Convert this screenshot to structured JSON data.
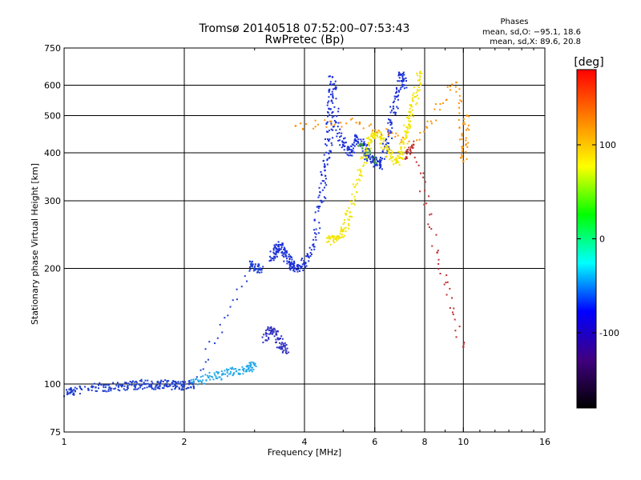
{
  "chart_data": {
    "type": "scatter",
    "title": "Tromsø 20140518 07:52:00–07:53:43",
    "subtitle": "RwPretec (Bp)",
    "xlabel": "Frequency [MHz]",
    "ylabel": "Stationary phase Virtual Height [km]",
    "xscale": "log",
    "yscale": "log",
    "xlim": [
      1,
      16
    ],
    "ylim": [
      75,
      750
    ],
    "grid": true,
    "x_ticks": [
      1,
      2,
      4,
      6,
      8,
      10,
      16
    ],
    "x_gridlines": [
      2,
      4,
      6,
      8,
      10
    ],
    "y_ticks": [
      75,
      100,
      200,
      300,
      400,
      500,
      600,
      750
    ],
    "y_gridlines": [
      100,
      200,
      300,
      400,
      500,
      600
    ],
    "legend": {
      "title": "Phases",
      "lines": [
        "mean, sd,O: −95.1, 18.6",
        "mean, sd,X:  89.6, 20.8"
      ],
      "position": "top-right"
    },
    "colorbar": {
      "label": "[deg]",
      "min": -180,
      "max": 180,
      "ticks": [
        100,
        0,
        -100
      ],
      "colors": [
        "#ff0000",
        "#ff8000",
        "#ffff00",
        "#00ff00",
        "#00ffff",
        "#0000ff",
        "#400080",
        "#000000"
      ]
    },
    "series": [
      {
        "color": "#1f3fd0",
        "x": [
          1.02,
          1.05,
          1.2,
          1.3,
          1.4,
          1.5,
          1.6,
          1.7,
          1.8,
          1.9,
          2.0,
          2.1,
          2.95,
          3.0,
          3.1
        ],
        "y": [
          95,
          96,
          98,
          98,
          99,
          99,
          100,
          99,
          100,
          99,
          99,
          100,
          205,
          200,
          200
        ]
      },
      {
        "color": "#20a8e8",
        "x": [
          2.1,
          2.3,
          2.5,
          2.7,
          2.9,
          3.0
        ],
        "y": [
          101,
          104,
          106,
          108,
          110,
          112
        ]
      },
      {
        "color": "#3030c0",
        "x": [
          3.2,
          3.3,
          3.4,
          3.5,
          3.6
        ],
        "y": [
          130,
          140,
          135,
          125,
          122
        ]
      },
      {
        "color": "#1a2fd8",
        "x": [
          3.3,
          3.4,
          3.5,
          3.6,
          3.7,
          3.8,
          4.0,
          4.2,
          4.4,
          4.5,
          4.6,
          4.65,
          4.7,
          4.8,
          5.0,
          5.2,
          5.4,
          5.6,
          5.8,
          6.0,
          6.2,
          6.4,
          6.6,
          6.8,
          7.0,
          7.1
        ],
        "y": [
          210,
          225,
          230,
          215,
          205,
          200,
          205,
          230,
          300,
          360,
          430,
          520,
          630,
          480,
          420,
          400,
          440,
          420,
          390,
          380,
          370,
          420,
          480,
          560,
          640,
          600
        ]
      },
      {
        "color": "#f2e400",
        "x": [
          4.6,
          4.8,
          5.0,
          5.2,
          5.5,
          5.8,
          6.0,
          6.2,
          6.5,
          6.8,
          7.0,
          7.2,
          7.4,
          7.6,
          7.8
        ],
        "y": [
          235,
          240,
          250,
          280,
          350,
          420,
          450,
          440,
          400,
          380,
          400,
          450,
          500,
          560,
          650
        ]
      },
      {
        "color": "#ff9000",
        "x": [
          3.8,
          5.5,
          7.5,
          9.6,
          10.0,
          10.2
        ],
        "y": [
          470,
          480,
          420,
          610,
          380,
          500
        ]
      },
      {
        "color": "#c03030",
        "x": [
          7.2,
          7.5,
          8.6,
          10.0
        ],
        "y": [
          390,
          420,
          220,
          125
        ]
      },
      {
        "color": "#3a9a3a",
        "x": [
          5.5,
          6.0
        ],
        "y": [
          420,
          380
        ]
      }
    ]
  }
}
